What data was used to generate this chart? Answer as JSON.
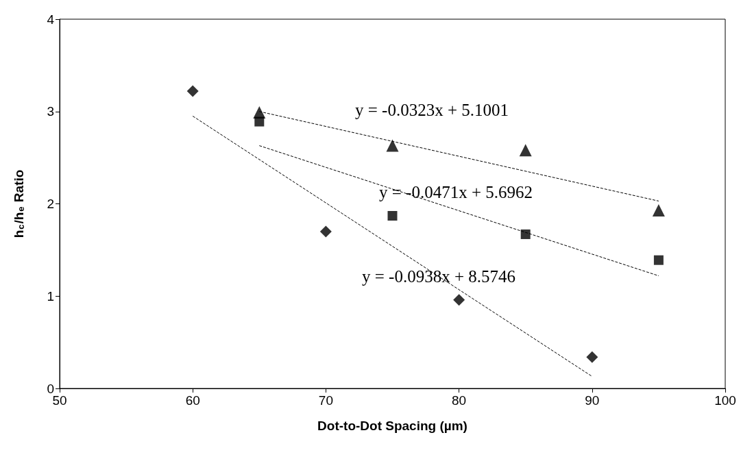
{
  "chart_data": {
    "type": "scatter",
    "xlabel": "Dot-to-Dot Spacing (µm)",
    "ylabel": "h$_{c}$/h$_{e}$ Ratio",
    "xlim": [
      50,
      100
    ],
    "xticks": [
      50,
      60,
      70,
      80,
      90,
      100
    ],
    "ylim": [
      0,
      4
    ],
    "yticks": [
      0,
      1,
      2,
      3,
      4
    ],
    "grid": false,
    "series": [
      {
        "marker": "diamond",
        "color": "#000000",
        "x": [
          60,
          70,
          80,
          90
        ],
        "values": [
          3.22,
          1.7,
          0.96,
          0.34
        ]
      },
      {
        "marker": "square",
        "color": "#000000",
        "x": [
          65,
          75,
          85,
          95
        ],
        "values": [
          2.89,
          1.87,
          1.67,
          1.39
        ]
      },
      {
        "marker": "triangle",
        "color": "#000000",
        "x": [
          65,
          75,
          85,
          95
        ],
        "values": [
          2.99,
          2.63,
          2.58,
          1.93
        ]
      },
      {
        "type": "line",
        "marker": "none",
        "line_style": "dashed",
        "color": "#000000",
        "x": [
          60,
          90
        ],
        "values": [
          2.95,
          0.13
        ]
      },
      {
        "type": "line",
        "marker": "none",
        "line_style": "dashed",
        "color": "#000000",
        "x": [
          65,
          95
        ],
        "values": [
          2.63,
          1.22
        ]
      },
      {
        "type": "line",
        "marker": "none",
        "line_style": "dashed",
        "color": "#000000",
        "x": [
          65,
          95
        ],
        "values": [
          3.0,
          2.03
        ]
      }
    ],
    "annotations": [
      "y = -0.0323x + 5.1001",
      "y = -0.0471x + 5.6962",
      "y = -0.0938x + 8.5746"
    ]
  }
}
